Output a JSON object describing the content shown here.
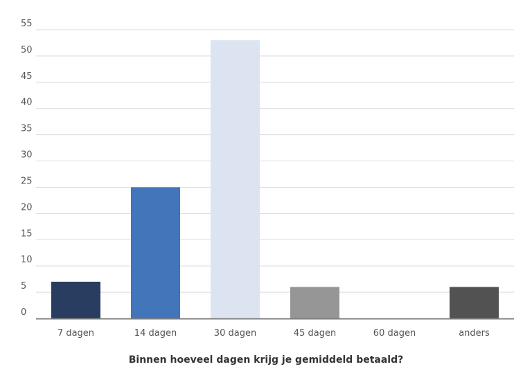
{
  "chart_data": {
    "type": "bar",
    "title": "Binnen hoeveel dagen krijg je gemiddeld betaald?",
    "xlabel": "",
    "ylabel": "",
    "categories": [
      "7 dagen",
      "14 dagen",
      "30 dagen",
      "45 dagen",
      "60 dagen",
      "anders"
    ],
    "values": [
      7,
      25,
      53,
      6,
      0,
      6
    ],
    "colors": [
      "#283d5f",
      "#4275ba",
      "#dce4f1",
      "#969696",
      "#e0e0e0",
      "#525252"
    ],
    "ylim": [
      0,
      55
    ],
    "yticks": [
      0,
      5,
      10,
      15,
      20,
      25,
      30,
      35,
      40,
      45,
      50,
      55
    ],
    "grid": true,
    "gridColor": "#d9d9d9",
    "axisColor": "#808080",
    "legend": "none"
  }
}
